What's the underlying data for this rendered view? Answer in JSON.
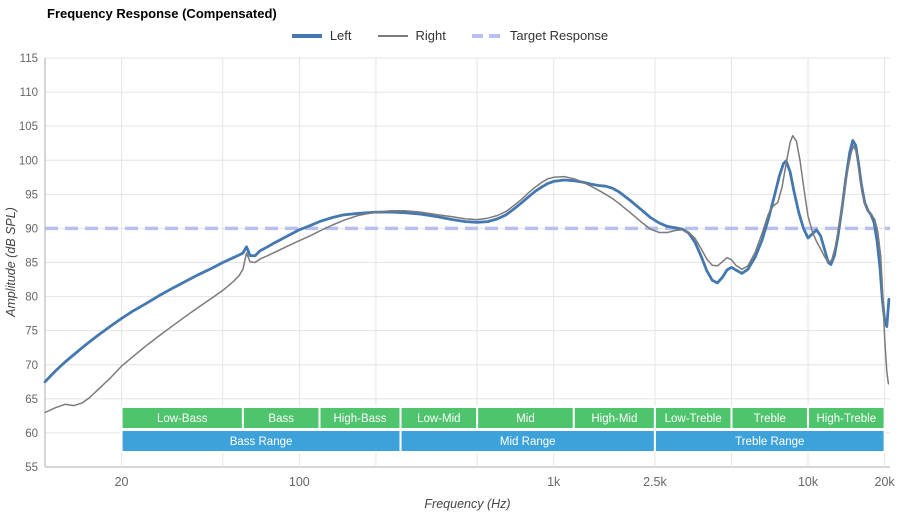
{
  "header": {
    "title": "Frequency Response (Compensated)"
  },
  "legend": {
    "items": [
      {
        "label": "Left",
        "color": "#4478b0",
        "thickness": 4,
        "dashed": false
      },
      {
        "label": "Right",
        "color": "#7b7b7b",
        "thickness": 2,
        "dashed": false
      },
      {
        "label": "Target Response",
        "color": "#b8c0f0",
        "thickness": 4,
        "dashed": true
      }
    ]
  },
  "axes": {
    "x_label": "Frequency (Hz)",
    "y_label": "Amplitude (dB SPL)"
  },
  "chart_data": {
    "type": "line",
    "title": "Frequency Response (Compensated)",
    "xlabel": "Frequency (Hz)",
    "ylabel": "Amplitude (dB SPL)",
    "x_scale": "log",
    "xlim": [
      10,
      21000
    ],
    "ylim": [
      55,
      115
    ],
    "grid": true,
    "legend_position": "top",
    "y_ticks": [
      55,
      60,
      65,
      70,
      75,
      80,
      85,
      90,
      95,
      100,
      105,
      110,
      115
    ],
    "x_ticks": [
      {
        "value": 20,
        "label": "20"
      },
      {
        "value": 100,
        "label": "100"
      },
      {
        "value": 1000,
        "label": "1k"
      },
      {
        "value": 2500,
        "label": "2.5k"
      },
      {
        "value": 10000,
        "label": "10k"
      },
      {
        "value": 20000,
        "label": "20k"
      }
    ],
    "x_gridlines": [
      20,
      50,
      100,
      200,
      500,
      1000,
      2500,
      5000,
      10000,
      20000
    ],
    "target_response_db": 90,
    "colors": {
      "grid": "#e4e4e4",
      "axis": "#adadad",
      "tick_text": "#666666",
      "target": "#b8c0f0",
      "band_text": "#ffffff"
    },
    "bands": {
      "sub_band_color": "#4ec46d",
      "range_band_color": "#3ea2da",
      "sub_bands": [
        {
          "label": "Low-Bass",
          "from": 20,
          "to": 60
        },
        {
          "label": "Bass",
          "from": 60,
          "to": 120
        },
        {
          "label": "High-Bass",
          "from": 120,
          "to": 250
        },
        {
          "label": "Low-Mid",
          "from": 250,
          "to": 500
        },
        {
          "label": "Mid",
          "from": 500,
          "to": 1200
        },
        {
          "label": "High-Mid",
          "from": 1200,
          "to": 2500
        },
        {
          "label": "Low-Treble",
          "from": 2500,
          "to": 5000
        },
        {
          "label": "Treble",
          "from": 5000,
          "to": 10000
        },
        {
          "label": "High-Treble",
          "from": 10000,
          "to": 20000
        }
      ],
      "range_bands": [
        {
          "label": "Bass Range",
          "from": 20,
          "to": 250
        },
        {
          "label": "Mid Range",
          "from": 250,
          "to": 2500
        },
        {
          "label": "Treble Range",
          "from": 2500,
          "to": 20000
        }
      ]
    },
    "series": [
      {
        "name": "Left",
        "color": "#4478b0",
        "stroke_width": 2.8,
        "points": [
          [
            10,
            67.5
          ],
          [
            11,
            69.1
          ],
          [
            12,
            70.4
          ],
          [
            13,
            71.5
          ],
          [
            14,
            72.5
          ],
          [
            15,
            73.4
          ],
          [
            16,
            74.2
          ],
          [
            18,
            75.6
          ],
          [
            20,
            76.8
          ],
          [
            22,
            77.8
          ],
          [
            25,
            79
          ],
          [
            28,
            80.1
          ],
          [
            32,
            81.3
          ],
          [
            36,
            82.3
          ],
          [
            40,
            83.2
          ],
          [
            45,
            84.1
          ],
          [
            50,
            85
          ],
          [
            55,
            85.7
          ],
          [
            58,
            86.1
          ],
          [
            60,
            86.4
          ],
          [
            62,
            87.3
          ],
          [
            64,
            86
          ],
          [
            67,
            86
          ],
          [
            70,
            86.7
          ],
          [
            75,
            87.3
          ],
          [
            80,
            87.9
          ],
          [
            90,
            88.9
          ],
          [
            100,
            89.8
          ],
          [
            110,
            90.4
          ],
          [
            120,
            91
          ],
          [
            135,
            91.6
          ],
          [
            150,
            92
          ],
          [
            170,
            92.2
          ],
          [
            200,
            92.4
          ],
          [
            230,
            92.4
          ],
          [
            260,
            92.3
          ],
          [
            300,
            92.1
          ],
          [
            350,
            91.7
          ],
          [
            400,
            91.3
          ],
          [
            450,
            91
          ],
          [
            500,
            90.9
          ],
          [
            550,
            91
          ],
          [
            600,
            91.4
          ],
          [
            650,
            92
          ],
          [
            700,
            92.9
          ],
          [
            750,
            93.8
          ],
          [
            800,
            94.7
          ],
          [
            850,
            95.5
          ],
          [
            900,
            96.1
          ],
          [
            950,
            96.6
          ],
          [
            1000,
            96.9
          ],
          [
            1100,
            97.1
          ],
          [
            1200,
            97
          ],
          [
            1300,
            96.8
          ],
          [
            1400,
            96.5
          ],
          [
            1500,
            96.3
          ],
          [
            1600,
            96.2
          ],
          [
            1700,
            95.9
          ],
          [
            1800,
            95.4
          ],
          [
            2000,
            94.1
          ],
          [
            2200,
            92.8
          ],
          [
            2400,
            91.6
          ],
          [
            2600,
            90.8
          ],
          [
            2800,
            90.3
          ],
          [
            3000,
            90.1
          ],
          [
            3200,
            89.9
          ],
          [
            3400,
            89.3
          ],
          [
            3600,
            87.9
          ],
          [
            3800,
            85.9
          ],
          [
            4000,
            83.8
          ],
          [
            4200,
            82.4
          ],
          [
            4400,
            82
          ],
          [
            4600,
            82.8
          ],
          [
            4800,
            83.9
          ],
          [
            5000,
            84.3
          ],
          [
            5200,
            83.9
          ],
          [
            5500,
            83.4
          ],
          [
            5800,
            84
          ],
          [
            6200,
            85.8
          ],
          [
            6600,
            88.3
          ],
          [
            7000,
            91.5
          ],
          [
            7400,
            95
          ],
          [
            7700,
            97.6
          ],
          [
            8000,
            99.5
          ],
          [
            8200,
            99.9
          ],
          [
            8500,
            98.3
          ],
          [
            8800,
            95.5
          ],
          [
            9200,
            92.3
          ],
          [
            9600,
            90
          ],
          [
            10000,
            88.6
          ],
          [
            10400,
            89.2
          ],
          [
            10800,
            89.8
          ],
          [
            11200,
            88.9
          ],
          [
            11600,
            87
          ],
          [
            12000,
            85
          ],
          [
            12300,
            84.7
          ],
          [
            12700,
            86
          ],
          [
            13100,
            88.8
          ],
          [
            13600,
            93
          ],
          [
            14100,
            97.5
          ],
          [
            14600,
            101.2
          ],
          [
            15000,
            102.9
          ],
          [
            15400,
            102.2
          ],
          [
            15800,
            99.5
          ],
          [
            16200,
            96.5
          ],
          [
            16700,
            93.8
          ],
          [
            17200,
            92.6
          ],
          [
            17700,
            92
          ],
          [
            18200,
            90.8
          ],
          [
            18700,
            88
          ],
          [
            19200,
            84
          ],
          [
            19600,
            79.5
          ],
          [
            20000,
            76.6
          ],
          [
            20400,
            75.6
          ],
          [
            20800,
            79.6
          ]
        ]
      },
      {
        "name": "Right",
        "color": "#7b7b7b",
        "stroke_width": 1.5,
        "points": [
          [
            10,
            63
          ],
          [
            11,
            63.7
          ],
          [
            12,
            64.2
          ],
          [
            13,
            64
          ],
          [
            14,
            64.4
          ],
          [
            15,
            65.2
          ],
          [
            16,
            66.2
          ],
          [
            18,
            68
          ],
          [
            20,
            69.8
          ],
          [
            22,
            71.1
          ],
          [
            25,
            72.8
          ],
          [
            28,
            74.2
          ],
          [
            32,
            75.8
          ],
          [
            36,
            77.2
          ],
          [
            40,
            78.4
          ],
          [
            45,
            79.7
          ],
          [
            50,
            80.9
          ],
          [
            55,
            82.2
          ],
          [
            58,
            83.1
          ],
          [
            60,
            84
          ],
          [
            62,
            86.4
          ],
          [
            64,
            85.1
          ],
          [
            67,
            85
          ],
          [
            70,
            85.5
          ],
          [
            75,
            86
          ],
          [
            80,
            86.5
          ],
          [
            90,
            87.4
          ],
          [
            100,
            88.2
          ],
          [
            110,
            88.9
          ],
          [
            120,
            89.6
          ],
          [
            135,
            90.5
          ],
          [
            150,
            91.2
          ],
          [
            170,
            91.9
          ],
          [
            200,
            92.4
          ],
          [
            230,
            92.6
          ],
          [
            260,
            92.6
          ],
          [
            300,
            92.4
          ],
          [
            350,
            92
          ],
          [
            400,
            91.7
          ],
          [
            450,
            91.4
          ],
          [
            500,
            91.3
          ],
          [
            550,
            91.5
          ],
          [
            600,
            91.9
          ],
          [
            650,
            92.5
          ],
          [
            700,
            93.4
          ],
          [
            750,
            94.3
          ],
          [
            800,
            95.3
          ],
          [
            850,
            96.1
          ],
          [
            900,
            96.8
          ],
          [
            950,
            97.3
          ],
          [
            1000,
            97.5
          ],
          [
            1100,
            97.6
          ],
          [
            1200,
            97.3
          ],
          [
            1300,
            96.8
          ],
          [
            1400,
            96.2
          ],
          [
            1500,
            95.6
          ],
          [
            1600,
            95
          ],
          [
            1700,
            94.4
          ],
          [
            1800,
            93.7
          ],
          [
            2000,
            92.3
          ],
          [
            2200,
            91
          ],
          [
            2400,
            89.9
          ],
          [
            2600,
            89.4
          ],
          [
            2800,
            89.4
          ],
          [
            3000,
            89.7
          ],
          [
            3200,
            89.8
          ],
          [
            3400,
            89.4
          ],
          [
            3600,
            88.5
          ],
          [
            3800,
            87
          ],
          [
            4000,
            85.5
          ],
          [
            4200,
            84.6
          ],
          [
            4400,
            84.5
          ],
          [
            4600,
            85.1
          ],
          [
            4800,
            85.7
          ],
          [
            5000,
            85.4
          ],
          [
            5200,
            84.6
          ],
          [
            5500,
            84
          ],
          [
            5800,
            84.5
          ],
          [
            6200,
            86.5
          ],
          [
            6600,
            89.3
          ],
          [
            7000,
            92.2
          ],
          [
            7300,
            93.3
          ],
          [
            7600,
            93.8
          ],
          [
            7900,
            96
          ],
          [
            8200,
            99.5
          ],
          [
            8500,
            102.6
          ],
          [
            8700,
            103.6
          ],
          [
            9000,
            102.8
          ],
          [
            9300,
            100
          ],
          [
            9700,
            95
          ],
          [
            10000,
            91.8
          ],
          [
            10400,
            89.5
          ],
          [
            10800,
            88.1
          ],
          [
            11200,
            87
          ],
          [
            11600,
            85.9
          ],
          [
            12000,
            85
          ],
          [
            12400,
            85.4
          ],
          [
            12800,
            87.3
          ],
          [
            13300,
            90.8
          ],
          [
            13800,
            94.8
          ],
          [
            14300,
            98.5
          ],
          [
            14800,
            101.2
          ],
          [
            15100,
            102.1
          ],
          [
            15500,
            101.2
          ],
          [
            15900,
            98
          ],
          [
            16300,
            95.3
          ],
          [
            16800,
            93.3
          ],
          [
            17300,
            92.5
          ],
          [
            17800,
            92
          ],
          [
            18300,
            91.3
          ],
          [
            18800,
            89.5
          ],
          [
            19300,
            86
          ],
          [
            19700,
            80
          ],
          [
            20000,
            74
          ],
          [
            20400,
            69
          ],
          [
            20700,
            67.2
          ]
        ]
      }
    ]
  }
}
